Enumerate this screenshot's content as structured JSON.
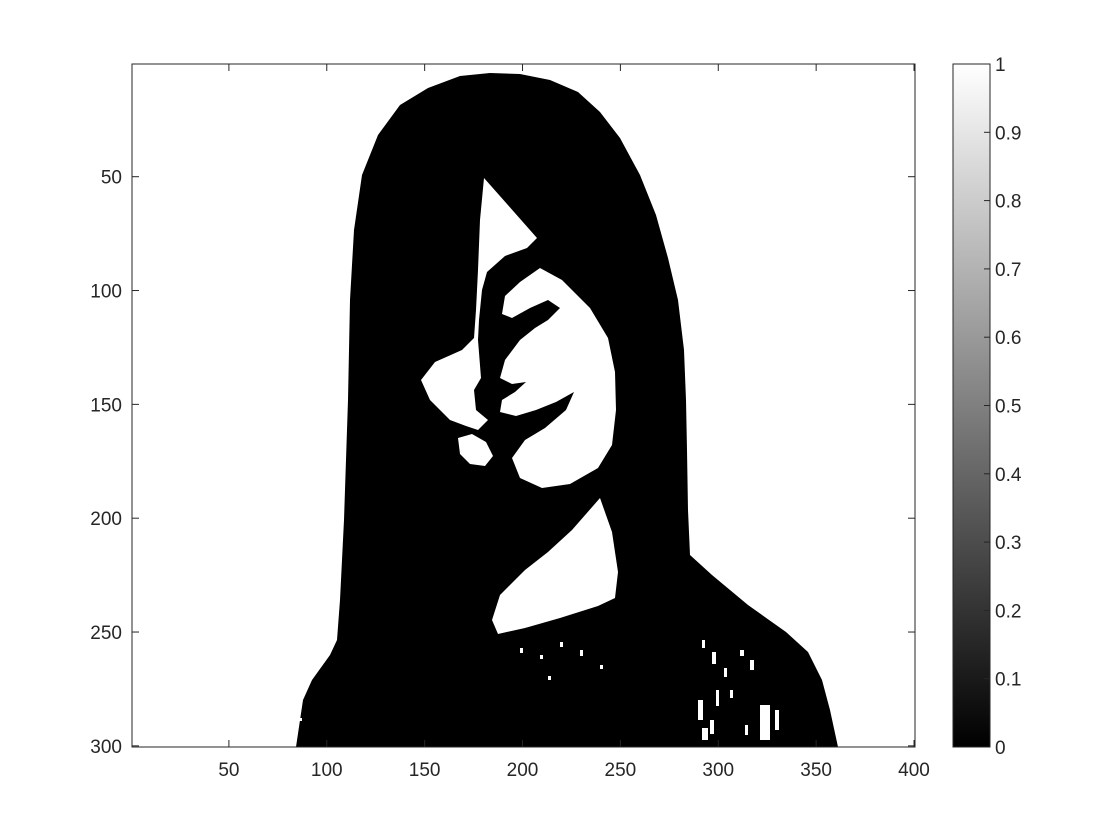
{
  "chart_data": {
    "type": "heatmap",
    "title": "",
    "xlabel": "",
    "ylabel": "",
    "xlim": [
      0.5,
      400.5
    ],
    "ylim": [
      0.5,
      300.5
    ],
    "y_reversed": true,
    "x_ticks": [
      50,
      100,
      150,
      200,
      250,
      300,
      350,
      400
    ],
    "y_ticks": [
      50,
      100,
      150,
      200,
      250,
      300
    ],
    "colormap": "gray",
    "color_limits": [
      0,
      1
    ],
    "colorbar": {
      "location": "right",
      "ticks": [
        0,
        0.1,
        0.2,
        0.3,
        0.4,
        0.5,
        0.6,
        0.7,
        0.8,
        0.9,
        1
      ],
      "tick_labels": [
        "0",
        "0.1",
        "0.2",
        "0.3",
        "0.4",
        "0.5",
        "0.6",
        "0.7",
        "0.8",
        "0.9",
        "1"
      ]
    },
    "image": {
      "description_values": "binary image (values 0 and 1): black = 0, white = 1",
      "background_value": 1,
      "foreground_value": 0
    },
    "colors": {
      "ink": "#000000",
      "paper": "#ffffff",
      "axis": "#262626"
    }
  }
}
